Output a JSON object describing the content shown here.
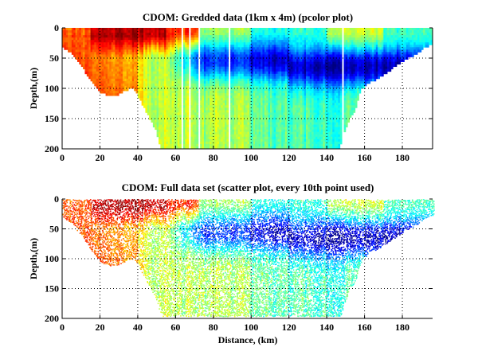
{
  "figure": {
    "background": "#ffffff",
    "colormap": "jet"
  },
  "chart_data": [
    {
      "type": "heatmap",
      "subtype": "pcolor",
      "title": "CDOM: Gredded data (1km x 4m) (pcolor plot)",
      "xlabel": "",
      "ylabel": "Depth,(m)",
      "xlim": [
        0,
        196
      ],
      "ylim": [
        200,
        0
      ],
      "y_reversed": true,
      "xticks": [
        0,
        20,
        40,
        60,
        80,
        100,
        120,
        140,
        160,
        180
      ],
      "yticks": [
        0,
        50,
        100,
        150,
        200
      ],
      "grid": true,
      "grid_style": "dotted",
      "cell_size": {
        "x_km": 1,
        "y_m": 4
      },
      "color_scale": "relative CDOM (0 = low/blue, 1 = high/red)",
      "bottom_profile": {
        "x_km": [
          0,
          5,
          10,
          15,
          20,
          25,
          30,
          35,
          38,
          40,
          45,
          50,
          52,
          53,
          147,
          148,
          150,
          152,
          155,
          158,
          162,
          168,
          175,
          182,
          188,
          192,
          196
        ],
        "depth_m": [
          30,
          40,
          60,
          85,
          105,
          110,
          108,
          100,
          98,
          110,
          140,
          170,
          195,
          200,
          200,
          180,
          165,
          150,
          135,
          100,
          90,
          80,
          65,
          50,
          40,
          30,
          25
        ]
      },
      "gaps_km": [
        63,
        67,
        72,
        88,
        148
      ],
      "field": {
        "surface_high_x_km": [
          0,
          60
        ],
        "deep_blue_core_x_km": [
          60,
          190
        ],
        "deep_blue_core_depth_m": [
          40,
          90
        ]
      }
    },
    {
      "type": "scatter",
      "title": "CDOM: Full data set (scatter plot, every 10th point used)",
      "xlabel": "Distance, (km)",
      "ylabel": "Depth,(m)",
      "xlim": [
        0,
        196
      ],
      "ylim": [
        200,
        0
      ],
      "y_reversed": true,
      "xticks": [
        0,
        20,
        40,
        60,
        80,
        100,
        120,
        140,
        160,
        180
      ],
      "yticks": [
        0,
        50,
        100,
        150,
        200
      ],
      "grid": true,
      "grid_style": "dotted",
      "sampling": "every 10th point",
      "color_scale": "relative CDOM (0 = low/blue, 1 = high/red)",
      "bottom_profile": {
        "x_km": [
          0,
          5,
          10,
          15,
          20,
          25,
          30,
          35,
          38,
          40,
          45,
          50,
          52,
          53,
          147,
          148,
          150,
          152,
          155,
          158,
          162,
          168,
          175,
          182,
          188,
          192,
          196
        ],
        "depth_m": [
          30,
          40,
          60,
          85,
          105,
          110,
          108,
          100,
          98,
          110,
          140,
          170,
          192,
          195,
          195,
          180,
          165,
          150,
          135,
          100,
          90,
          80,
          65,
          50,
          40,
          30,
          25
        ]
      }
    }
  ]
}
